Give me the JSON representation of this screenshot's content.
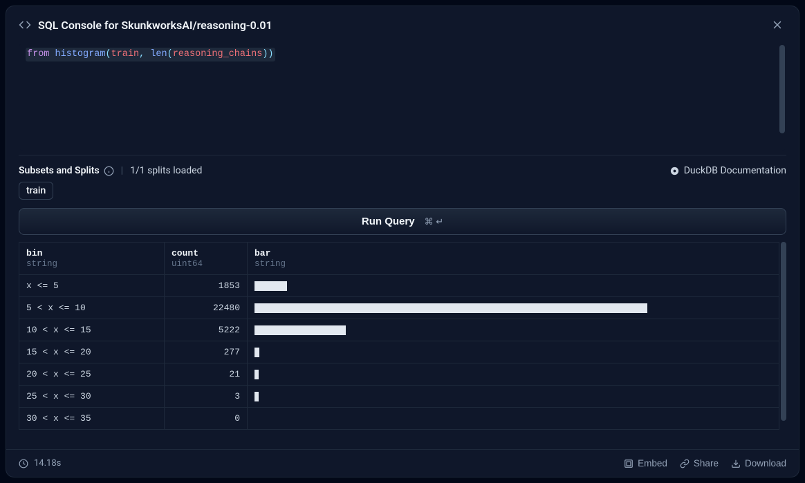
{
  "header": {
    "title": "SQL Console for SkunkworksAI/reasoning-0.01"
  },
  "code": {
    "tokens": [
      {
        "t": "from ",
        "cls": "tok-kw"
      },
      {
        "t": "histogram",
        "cls": "tok-fn"
      },
      {
        "t": "(",
        "cls": "tok-punc"
      },
      {
        "t": "train",
        "cls": "tok-id"
      },
      {
        "t": ", ",
        "cls": "tok-punc"
      },
      {
        "t": "len",
        "cls": "tok-fn"
      },
      {
        "t": "(",
        "cls": "tok-punc"
      },
      {
        "t": "reasoning_chains",
        "cls": "tok-id"
      },
      {
        "t": "))",
        "cls": "tok-punc"
      }
    ]
  },
  "subsets": {
    "label": "Subsets and Splits",
    "loaded": "1/1 splits loaded",
    "doc_link": "DuckDB Documentation",
    "chips": [
      "train"
    ]
  },
  "run": {
    "label": "Run Query",
    "shortcut": "⌘ ↵"
  },
  "table": {
    "columns": [
      {
        "name": "bin",
        "type": "string",
        "cls": "col-bin",
        "align": "left"
      },
      {
        "name": "count",
        "type": "uint64",
        "cls": "col-count",
        "align": "right"
      },
      {
        "name": "bar",
        "type": "string",
        "cls": "col-bar",
        "align": "left"
      }
    ],
    "max_count": 22480,
    "bar_full_pct": 76,
    "rows": [
      {
        "bin": "x <= 5",
        "count": 1853
      },
      {
        "bin": "5 < x <= 10",
        "count": 22480
      },
      {
        "bin": "10 < x <= 15",
        "count": 5222
      },
      {
        "bin": "15 < x <= 20",
        "count": 277
      },
      {
        "bin": "20 < x <= 25",
        "count": 21
      },
      {
        "bin": "25 < x <= 30",
        "count": 3
      },
      {
        "bin": "30 < x <= 35",
        "count": 0
      }
    ]
  },
  "footer": {
    "time": "14.18s",
    "embed": "Embed",
    "share": "Share",
    "download": "Download"
  },
  "colors": {
    "bg": "#020817",
    "panel": "#0f172a",
    "border": "#1e293b",
    "bar_fill": "#e2e8f0"
  }
}
